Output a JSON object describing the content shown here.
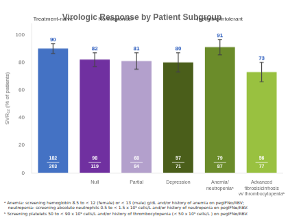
{
  "chart_data": {
    "type": "bar",
    "title": "Virologic Response by Patient Subgroup",
    "ylabel": "SVR₁₂ (% of patients)",
    "categories": [
      null,
      "Null",
      "Partial",
      "Depression",
      "Anemia/\nneutropeniaᵃ",
      "Advanced\nfibrosis/cirrhosis\nw/ thrombocytopeniaᵇ"
    ],
    "values": [
      90,
      82,
      81,
      80,
      91,
      73
    ],
    "errors": [
      3.5,
      5,
      6,
      7,
      5.5,
      7
    ],
    "n_responders": [
      "182",
      "98",
      "68",
      "57",
      "79",
      "56"
    ],
    "n_total": [
      "203",
      "119",
      "84",
      "71",
      "87",
      "77"
    ],
    "groups": [
      "Treatment-naive",
      "Nonresponder",
      "Nonresponder",
      "Ineligible/intolerant",
      "Ineligible/intolerant",
      "Ineligible/intolerant"
    ],
    "colors": [
      "#4472c4",
      "#7030a0",
      "#b3a0cc",
      "#4a5e1a",
      "#6b8c2a",
      "#99c140"
    ],
    "data_labels": true,
    "ylim": [
      0,
      108
    ],
    "yticks": [
      0,
      20,
      40,
      60,
      80,
      100
    ],
    "grid": false,
    "annotations": [
      "ᵃ Anemia: screening hemoglobin 8.5 to < 12 (female) or < 13 (male) g/dL and/or history of anemia on pegIFNα/RBV;\n   neutropenia: screening absolute neutrophils 0.5 to < 1.5 x 10⁹ cells/L and/or history of neutropenia on pegIFNα/RBV.",
      "ᵇ Screening platelets 50 to < 90 x 10⁹ cells/L and/or history of thrombocytopenia (< 50 x 10⁹ cells/L ) on pegIFNα/RBV."
    ]
  }
}
